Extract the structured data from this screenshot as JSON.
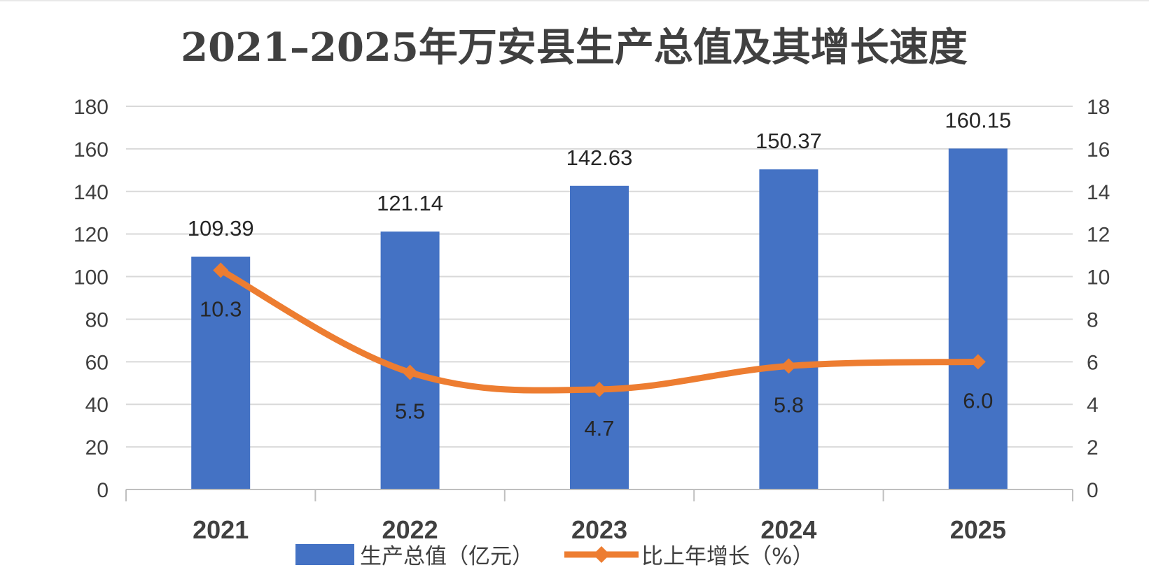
{
  "chart_data": {
    "type": "bar",
    "title": "2021–2025年万安县生产总值及其增长速度",
    "categories": [
      "2021",
      "2022",
      "2023",
      "2024",
      "2025"
    ],
    "series": [
      {
        "name": "生产总值（亿元）",
        "type": "bar",
        "axis": "left",
        "color": "#4472C4",
        "values": [
          109.39,
          121.14,
          142.63,
          150.37,
          160.15
        ],
        "labels": [
          "109.39",
          "121.14",
          "142.63",
          "150.37",
          "160.15"
        ]
      },
      {
        "name": "比上年增长（%）",
        "type": "line",
        "axis": "right",
        "color": "#ED7D31",
        "values": [
          10.3,
          5.5,
          4.7,
          5.8,
          6.0
        ],
        "labels": [
          "10.3",
          "5.5",
          "4.7",
          "5.8",
          "6.0"
        ]
      }
    ],
    "y_left": {
      "min": 0,
      "max": 180,
      "ticks": [
        "0",
        "20",
        "40",
        "60",
        "80",
        "100",
        "120",
        "140",
        "160",
        "180"
      ]
    },
    "y_right": {
      "min": 0,
      "max": 18,
      "ticks": [
        "0",
        "2",
        "4",
        "6",
        "8",
        "10",
        "12",
        "14",
        "16",
        "18"
      ]
    },
    "grid": true,
    "legend_position": "bottom"
  }
}
